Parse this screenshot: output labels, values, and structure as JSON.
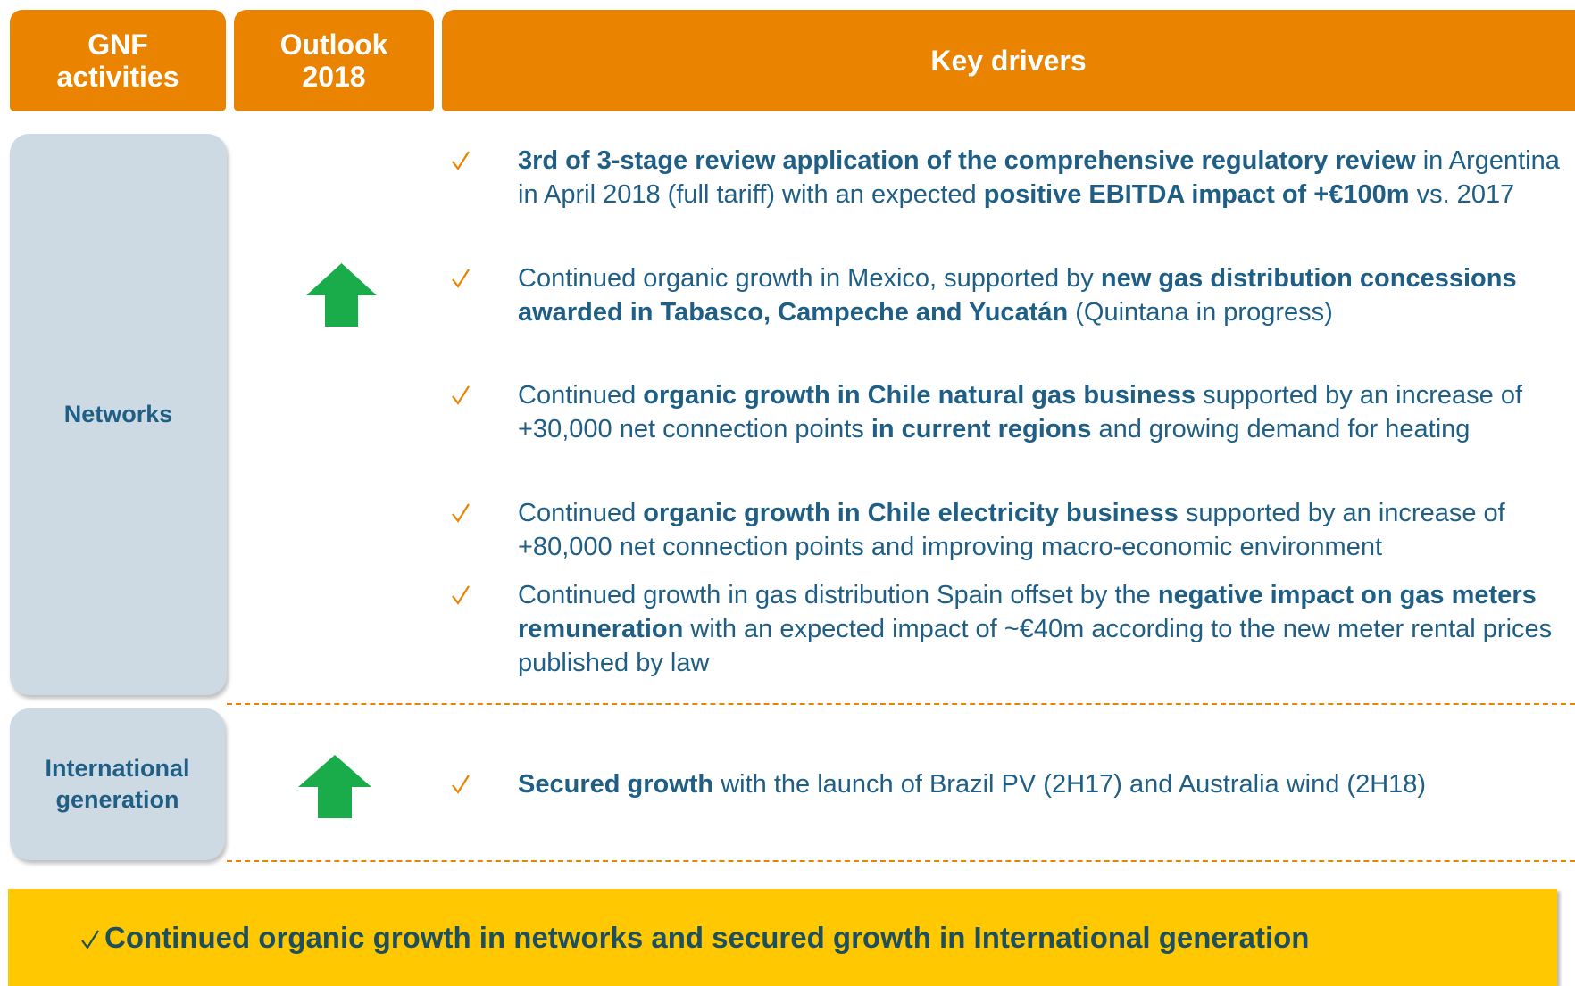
{
  "header": {
    "columns": [
      "GNF\nactivities",
      "Outlook\n2018",
      "Key drivers"
    ]
  },
  "rows": [
    {
      "label": "Networks",
      "bullets": [
        [
          {
            "text": "3rd of 3-stage review application of the comprehensive regulatory review",
            "bold": true
          },
          {
            "text": " in Argentina in April 2018 (full tariff) with an expected ",
            "bold": false
          },
          {
            "text": "positive EBITDA impact of +€100m",
            "bold": true
          },
          {
            "text": " vs. 2017",
            "bold": false
          }
        ],
        [
          {
            "text": "Continued organic growth in Mexico, supported by ",
            "bold": false
          },
          {
            "text": "new gas distribution concessions awarded in Tabasco, Campeche and Yucatán",
            "bold": true
          },
          {
            "text": " (Quintana in progress)",
            "bold": false
          }
        ],
        [
          {
            "text": "Continued ",
            "bold": false
          },
          {
            "text": "organic growth in Chile natural gas business",
            "bold": true
          },
          {
            "text": " supported by an increase of +30,000 net connection points ",
            "bold": false
          },
          {
            "text": "in current regions",
            "bold": true
          },
          {
            "text": " and growing demand for heating",
            "bold": false
          }
        ],
        [
          {
            "text": "Continued ",
            "bold": false
          },
          {
            "text": "organic growth in Chile electricity business",
            "bold": true
          },
          {
            "text": " supported by an increase of +80,000 net connection points and improving macro-economic environment",
            "bold": false
          }
        ],
        [
          {
            "text": "Continued growth in gas distribution Spain offset by the ",
            "bold": false
          },
          {
            "text": "negative impact on gas meters remuneration",
            "bold": true
          },
          {
            "text": " with an expected impact of ~€40m according to the new meter rental prices published by law",
            "bold": false
          }
        ]
      ]
    },
    {
      "label": "International\ngeneration",
      "bullets": [
        [
          {
            "text": "Secured growth",
            "bold": true
          },
          {
            "text": " with the launch of Brazil PV (2H17) and Australia wind (2H18)",
            "bold": false
          }
        ]
      ]
    }
  ],
  "conclusion": "Continued organic growth in networks and secured growth in International generation"
}
